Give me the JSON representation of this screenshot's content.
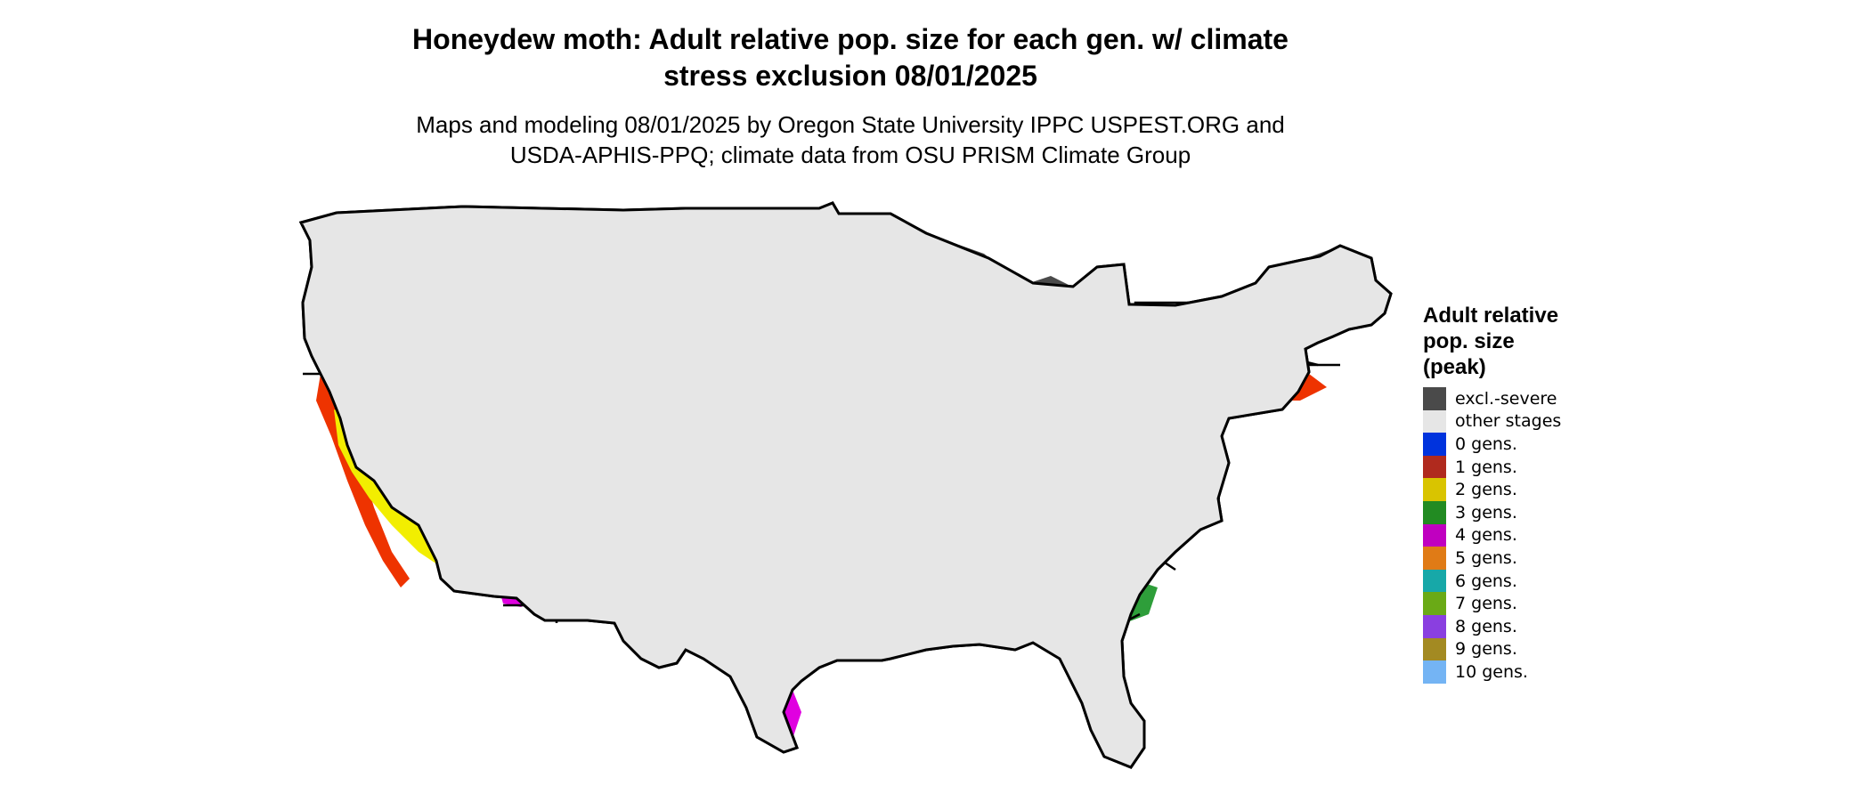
{
  "header": {
    "title_line1": "Honeydew moth: Adult relative pop. size for each gen. w/ climate",
    "title_line2": "stress exclusion 08/01/2025",
    "subtitle_line1": "Maps and modeling 08/01/2025 by Oregon State University IPPC USPEST.ORG and",
    "subtitle_line2": "USDA-APHIS-PPQ; climate data from OSU PRISM Climate Group"
  },
  "legend": {
    "title_line1": "Adult relative",
    "title_line2": "pop. size",
    "title_line3": "(peak)",
    "items": [
      {
        "label": "excl.-severe",
        "color": "#4a4a4a"
      },
      {
        "label": "other stages",
        "color": "#e6e6e6"
      },
      {
        "label": "0 gens.",
        "color": "#0033dd"
      },
      {
        "label": "1 gens.",
        "color": "#b02a1e"
      },
      {
        "label": "2 gens.",
        "color": "#d9c400"
      },
      {
        "label": "3 gens.",
        "color": "#228b22"
      },
      {
        "label": "4 gens.",
        "color": "#c000c0"
      },
      {
        "label": "5 gens.",
        "color": "#e07b16"
      },
      {
        "label": "6 gens.",
        "color": "#17a8a8"
      },
      {
        "label": "7 gens.",
        "color": "#6aaa16"
      },
      {
        "label": "8 gens.",
        "color": "#8a3fe0"
      },
      {
        "label": "9 gens.",
        "color": "#a38a22"
      },
      {
        "label": "10 gens.",
        "color": "#74b4f4"
      }
    ]
  },
  "map_colors": {
    "land": "#e6e6e6",
    "excluded": "#4a4a4a",
    "one_gen_fill": "#ee3300",
    "two_gen_fill": "#f2ee00",
    "three_gen_fill": "#2e9e3a",
    "three_gen_light": "#74d874",
    "four_gen_fill": "#e000e0",
    "ten_gen_fill": "#2288ee",
    "border": "#000000"
  }
}
